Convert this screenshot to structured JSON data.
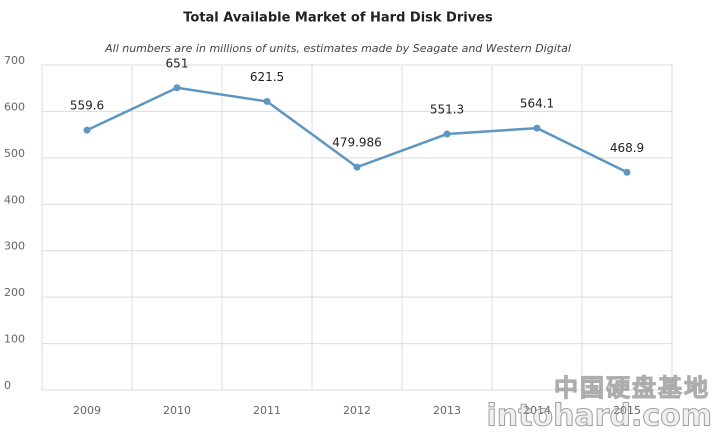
{
  "chart_data": {
    "type": "line",
    "title": "Total Available Market of Hard Disk Drives",
    "subtitle": "All numbers are in millions of units, estimates made by Seagate and Western Digital",
    "categories": [
      "2009",
      "2010",
      "2011",
      "2012",
      "2013",
      "2014",
      "2015"
    ],
    "values": [
      559.6,
      651,
      621.5,
      479.986,
      551.3,
      564.1,
      468.9
    ],
    "color": "#5e96c2",
    "ylim": [
      0,
      700
    ],
    "yticks": [
      0,
      100,
      200,
      300,
      400,
      500,
      600,
      700
    ],
    "grid": true
  },
  "watermark": {
    "cn": "中国硬盘基地",
    "en": "intohard.com"
  }
}
